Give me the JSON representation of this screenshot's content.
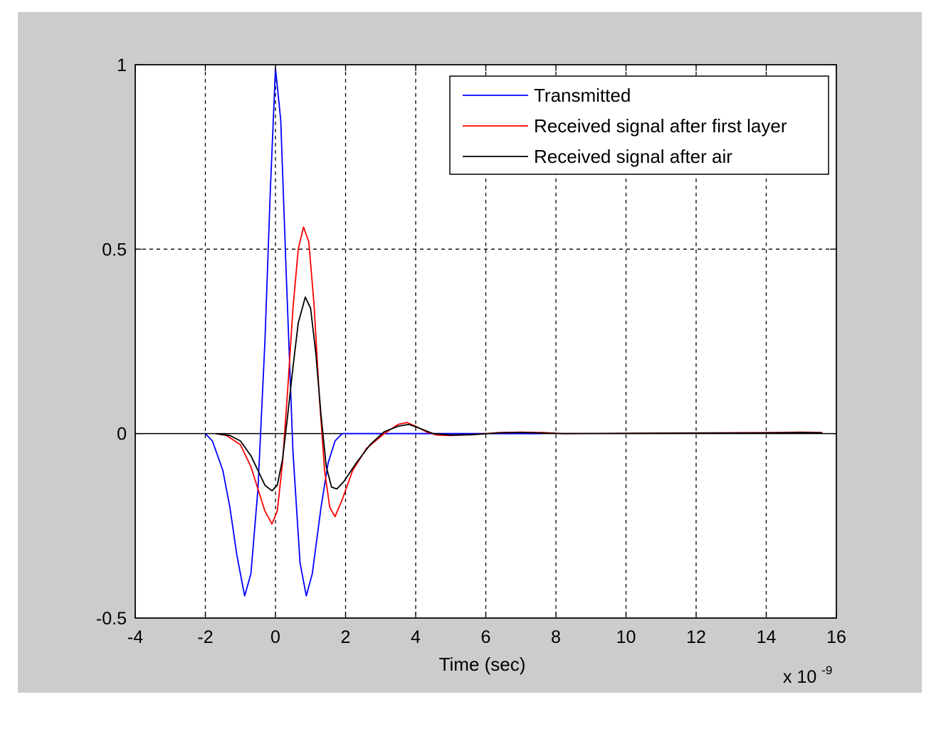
{
  "chart_data": {
    "type": "line",
    "title": "",
    "xlabel": "Time (sec)",
    "ylabel": "",
    "x_multiplier_label": {
      "base": "x 10",
      "exponent": "-9"
    },
    "xlim": [
      -4,
      16
    ],
    "ylim": [
      -0.5,
      1
    ],
    "x_ticks": [
      -4,
      -2,
      0,
      2,
      4,
      6,
      8,
      10,
      12,
      14,
      16
    ],
    "y_ticks": [
      -0.5,
      0,
      0.5,
      1
    ],
    "x_tick_labels": [
      "-4",
      "-2",
      "0",
      "2",
      "4",
      "6",
      "8",
      "10",
      "12",
      "14",
      "16"
    ],
    "y_tick_labels": [
      "-0.5",
      "0",
      "0.5",
      "1"
    ],
    "grid": true,
    "legend_position": "top-right",
    "series": [
      {
        "name": "Transmitted",
        "color": "#0000ff",
        "points": [
          [
            -2,
            0
          ],
          [
            -1.8,
            -0.02
          ],
          [
            -1.5,
            -0.1
          ],
          [
            -1.3,
            -0.2
          ],
          [
            -1.1,
            -0.33
          ],
          [
            -0.88,
            -0.44
          ],
          [
            -0.7,
            -0.38
          ],
          [
            -0.5,
            -0.15
          ],
          [
            -0.3,
            0.25
          ],
          [
            -0.15,
            0.65
          ],
          [
            0,
            0.99
          ],
          [
            0.15,
            0.85
          ],
          [
            0.3,
            0.45
          ],
          [
            0.5,
            -0.05
          ],
          [
            0.7,
            -0.35
          ],
          [
            0.88,
            -0.44
          ],
          [
            1.05,
            -0.38
          ],
          [
            1.3,
            -0.2
          ],
          [
            1.5,
            -0.08
          ],
          [
            1.7,
            -0.02
          ],
          [
            1.9,
            0
          ],
          [
            4.6,
            0
          ],
          [
            5.6,
            0
          ],
          [
            6.4,
            0
          ],
          [
            7.4,
            0
          ],
          [
            7.6,
            0
          ]
        ]
      },
      {
        "name": "Received signal after first layer",
        "color": "#ff0000",
        "points": [
          [
            -1.7,
            0
          ],
          [
            -1.4,
            -0.005
          ],
          [
            -1.0,
            -0.03
          ],
          [
            -0.7,
            -0.09
          ],
          [
            -0.5,
            -0.15
          ],
          [
            -0.3,
            -0.21
          ],
          [
            -0.1,
            -0.245
          ],
          [
            0.05,
            -0.21
          ],
          [
            0.2,
            -0.08
          ],
          [
            0.35,
            0.12
          ],
          [
            0.5,
            0.34
          ],
          [
            0.65,
            0.5
          ],
          [
            0.8,
            0.56
          ],
          [
            0.95,
            0.52
          ],
          [
            1.1,
            0.35
          ],
          [
            1.25,
            0.1
          ],
          [
            1.4,
            -0.1
          ],
          [
            1.55,
            -0.2
          ],
          [
            1.7,
            -0.225
          ],
          [
            1.9,
            -0.18
          ],
          [
            2.2,
            -0.1
          ],
          [
            2.6,
            -0.04
          ],
          [
            3.1,
            0
          ],
          [
            3.5,
            0.025
          ],
          [
            3.75,
            0.03
          ],
          [
            4.0,
            0.02
          ],
          [
            4.3,
            0.005
          ],
          [
            4.6,
            -0.004
          ],
          [
            5.0,
            -0.005
          ],
          [
            5.6,
            -0.003
          ],
          [
            6.4,
            0.003
          ],
          [
            7.0,
            0.004
          ],
          [
            7.6,
            0.003
          ],
          [
            8.2,
            0
          ],
          [
            14.2,
            0.003
          ],
          [
            15.0,
            0.004
          ],
          [
            15.6,
            0.003
          ]
        ]
      },
      {
        "name": "Received signal after air",
        "color": "#000000",
        "points": [
          [
            -1.7,
            0
          ],
          [
            -1.3,
            -0.005
          ],
          [
            -1.0,
            -0.02
          ],
          [
            -0.7,
            -0.06
          ],
          [
            -0.5,
            -0.1
          ],
          [
            -0.3,
            -0.14
          ],
          [
            -0.1,
            -0.155
          ],
          [
            0.05,
            -0.14
          ],
          [
            0.2,
            -0.07
          ],
          [
            0.35,
            0.05
          ],
          [
            0.5,
            0.18
          ],
          [
            0.65,
            0.3
          ],
          [
            0.85,
            0.37
          ],
          [
            1.0,
            0.34
          ],
          [
            1.15,
            0.22
          ],
          [
            1.3,
            0.05
          ],
          [
            1.45,
            -0.09
          ],
          [
            1.6,
            -0.145
          ],
          [
            1.75,
            -0.15
          ],
          [
            1.95,
            -0.13
          ],
          [
            2.3,
            -0.08
          ],
          [
            2.7,
            -0.03
          ],
          [
            3.1,
            0.005
          ],
          [
            3.5,
            0.02
          ],
          [
            3.8,
            0.025
          ],
          [
            4.1,
            0.015
          ],
          [
            4.5,
            0
          ],
          [
            5.0,
            -0.004
          ],
          [
            5.6,
            -0.003
          ],
          [
            6.4,
            0.002
          ],
          [
            7.0,
            0.003
          ],
          [
            7.4,
            0.002
          ],
          [
            8.2,
            0
          ],
          [
            14.2,
            0.002
          ],
          [
            15.0,
            0.003
          ],
          [
            15.6,
            0.002
          ]
        ]
      }
    ]
  }
}
